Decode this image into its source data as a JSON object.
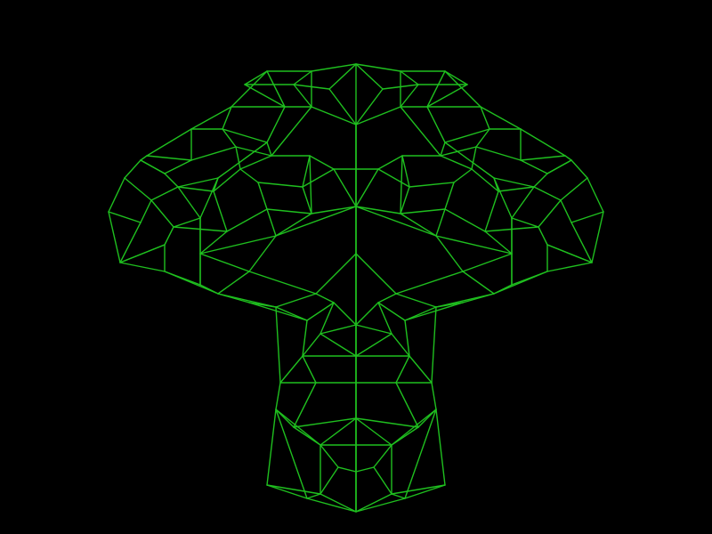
{
  "scene": {
    "background_color": "#000000",
    "wire_color": "#1fbf1f",
    "render_mode": "wireframe",
    "subject": "monkey-head-mesh",
    "symmetry": "mirrored-left-right"
  }
}
